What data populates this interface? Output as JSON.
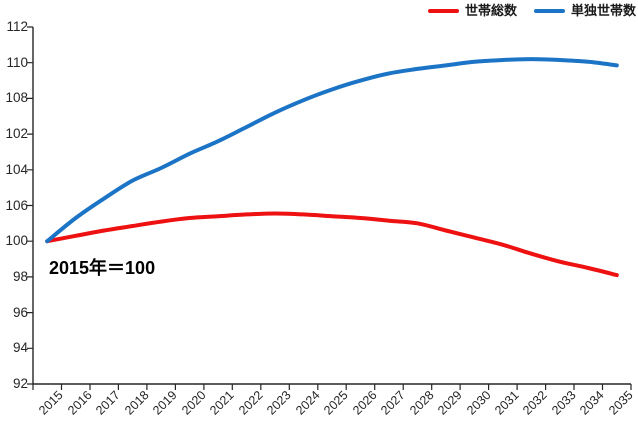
{
  "chart_data": {
    "type": "line",
    "title": "",
    "x": [
      2015,
      2016,
      2017,
      2018,
      2019,
      2020,
      2021,
      2022,
      2023,
      2024,
      2025,
      2026,
      2027,
      2028,
      2029,
      2030,
      2031,
      2032,
      2033,
      2034,
      2035
    ],
    "x_tick_labels": [
      "2015",
      "2016",
      "2017",
      "2018",
      "2019",
      "2020",
      "2021",
      "2022",
      "2023",
      "2024",
      "2025",
      "2026",
      "2027",
      "2028",
      "2029",
      "2030",
      "2031",
      "2032",
      "2033",
      "2034",
      "2035"
    ],
    "series": [
      {
        "name": "世帯総数",
        "color": "#ee1111",
        "values": [
          100.0,
          100.3,
          100.6,
          100.85,
          101.1,
          101.3,
          101.4,
          101.5,
          101.55,
          101.5,
          101.4,
          101.3,
          101.15,
          101.0,
          100.6,
          100.2,
          99.8,
          99.3,
          98.85,
          98.5,
          98.1
        ]
      },
      {
        "name": "単独世帯数",
        "color": "#1b74c5",
        "values": [
          100.0,
          101.3,
          102.4,
          103.4,
          104.1,
          104.9,
          105.6,
          106.4,
          107.2,
          107.9,
          108.5,
          109.0,
          109.4,
          109.65,
          109.85,
          110.05,
          110.15,
          110.2,
          110.15,
          110.05,
          109.85
        ]
      }
    ],
    "y_axis": {
      "tick_labels_top_to_bottom": [
        "112",
        "110",
        "108",
        "102",
        "104",
        "106",
        "100",
        "98",
        "96",
        "94",
        "92"
      ],
      "positional_range": [
        92,
        112
      ]
    },
    "grid": false,
    "legend_position": "top-right",
    "annotation": "2015年＝100"
  },
  "legend": {
    "items": [
      {
        "label": "世帯総数",
        "color": "#ee1111"
      },
      {
        "label": "単独世帯数",
        "color": "#1b74c5"
      }
    ]
  },
  "annotation": {
    "text": "2015年＝100"
  }
}
